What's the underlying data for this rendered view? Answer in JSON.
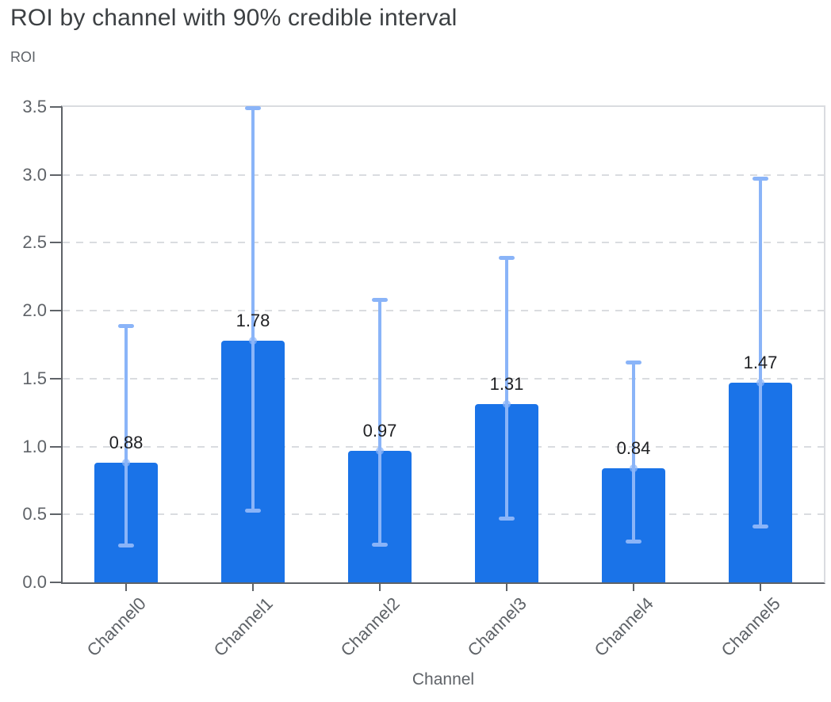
{
  "header": {
    "title": "ROI by channel with 90% credible interval",
    "y_axis_title": "ROI",
    "x_axis_title": "Channel"
  },
  "chart_data": {
    "type": "bar",
    "title": "ROI by channel with 90% credible interval",
    "xlabel": "Channel",
    "ylabel": "ROI",
    "categories": [
      "Channel0",
      "Channel1",
      "Channel2",
      "Channel3",
      "Channel4",
      "Channel5"
    ],
    "values": [
      0.88,
      1.78,
      0.97,
      1.31,
      0.84,
      1.47
    ],
    "value_labels": [
      "0.88",
      "1.78",
      "0.97",
      "1.31",
      "0.84",
      "1.47"
    ],
    "ci_low": [
      0.27,
      0.53,
      0.28,
      0.47,
      0.3,
      0.41
    ],
    "ci_high": [
      1.89,
      3.49,
      2.08,
      2.39,
      1.62,
      2.97
    ],
    "interval": "90% credible interval",
    "ylim": [
      0,
      3.5
    ],
    "ytick_labels": [
      "0.0",
      "0.5",
      "1.0",
      "1.5",
      "2.0",
      "2.5",
      "3.0",
      "3.5"
    ],
    "grid": "horizontal dashed",
    "legend": "none",
    "colors": {
      "bar": "#1a73e8",
      "error_bar": "#8ab4f8",
      "error_dot": "rgba(138,180,248,0.72)",
      "value_label": "#202124",
      "axis": "#5f6368",
      "grid_line": "#dadce0",
      "title": "#3c4043",
      "axis_label": "#5f6368"
    }
  }
}
